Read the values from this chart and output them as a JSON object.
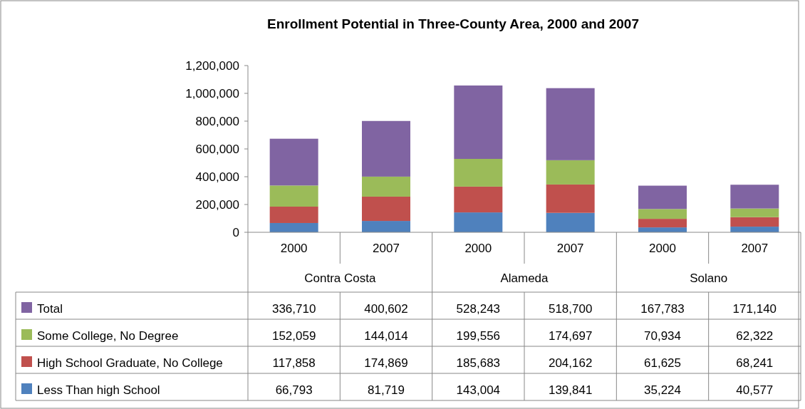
{
  "chart_data": {
    "type": "bar",
    "title": "Enrollment Potential in Three-County Area, 2000 and 2007",
    "categories": [
      "2000",
      "2007",
      "2000",
      "2007",
      "2000",
      "2007"
    ],
    "annotations": [
      "Contra Costa",
      "Alameda",
      "Solano"
    ],
    "stacked": true,
    "legend": "bottom",
    "grid": false,
    "ylim": [
      0,
      1200000
    ],
    "yticks": [
      0,
      {
        "value": 200000,
        "label": "200,000"
      },
      {
        "value": 400000,
        "label": "400,000"
      },
      {
        "value": 600000,
        "label": "600,000"
      },
      {
        "value": 800000,
        "label": "800,000"
      },
      {
        "value": 1000000,
        "label": "1,000,000"
      },
      {
        "value": 1200000,
        "label": "1,200,000"
      }
    ],
    "series": [
      {
        "name": "Less Than high School",
        "color": "#4f81bd",
        "values": [
          66793,
          81719,
          143004,
          139841,
          35224,
          40577
        ],
        "value_labels": [
          "66,793",
          "81,719",
          "143,004",
          "139,841",
          "35,224",
          "40,577"
        ]
      },
      {
        "name": "High School Graduate, No College",
        "color": "#c0504d",
        "values": [
          117858,
          174869,
          185683,
          204162,
          61625,
          68241
        ],
        "value_labels": [
          "117,858",
          "174,869",
          "185,683",
          "204,162",
          "61,625",
          "68,241"
        ]
      },
      {
        "name": "Some College, No Degree",
        "color": "#9bbb59",
        "values": [
          152059,
          144014,
          199556,
          174697,
          70934,
          62322
        ],
        "value_labels": [
          "152,059",
          "144,014",
          "199,556",
          "174,697",
          "70,934",
          "62,322"
        ]
      },
      {
        "name": "Total",
        "color": "#8064a2",
        "values": [
          336710,
          400602,
          528243,
          518700,
          167783,
          171140
        ],
        "value_labels": [
          "336,710",
          "400,602",
          "528,243",
          "518,700",
          "167,783",
          "171,140"
        ]
      }
    ]
  }
}
